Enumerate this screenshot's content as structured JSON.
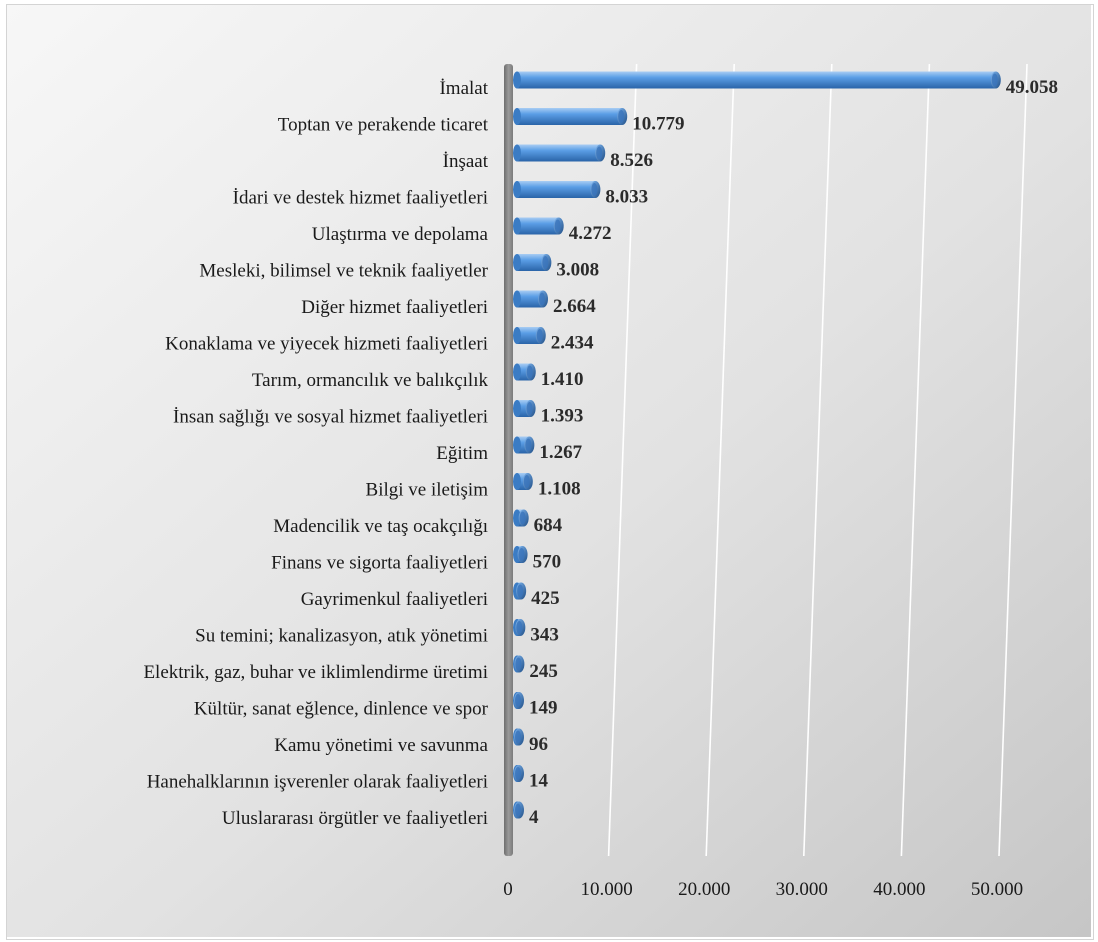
{
  "chart_data": {
    "type": "bar",
    "orientation": "horizontal",
    "categories": [
      "İmalat",
      "Toptan ve perakende ticaret",
      "İnşaat",
      "İdari ve destek hizmet faaliyetleri",
      "Ulaştırma ve depolama",
      "Mesleki, bilimsel ve teknik faaliyetler",
      "Diğer hizmet faaliyetleri",
      "Konaklama ve yiyecek hizmeti faaliyetleri",
      "Tarım, ormancılık ve balıkçılık",
      "İnsan sağlığı ve sosyal hizmet faaliyetleri",
      "Eğitim",
      "Bilgi ve iletişim",
      "Madencilik ve taş ocakçılığı",
      "Finans ve sigorta faaliyetleri",
      "Gayrimenkul faaliyetleri",
      "Su temini; kanalizasyon, atık yönetimi",
      "Elektrik, gaz, buhar ve iklimlendirme üretimi",
      "Kültür, sanat eğlence, dinlence ve spor",
      "Kamu yönetimi ve savunma",
      "Hanehalklarının işverenler olarak faaliyetleri",
      "Uluslararası örgütler ve  faaliyetleri"
    ],
    "values": [
      49058,
      10779,
      8526,
      8033,
      4272,
      3008,
      2664,
      2434,
      1410,
      1393,
      1267,
      1108,
      684,
      570,
      425,
      343,
      245,
      149,
      96,
      14,
      4
    ],
    "value_labels": [
      "49.058",
      "10.779",
      "8.526",
      "8.033",
      "4.272",
      "3.008",
      "2.664",
      "2.434",
      "1.410",
      "1.393",
      "1.267",
      "1.108",
      "684",
      "570",
      "425",
      "343",
      "245",
      "149",
      "96",
      "14",
      "4"
    ],
    "xlim": [
      0,
      50000
    ],
    "x_ticks": [
      0,
      10000,
      20000,
      30000,
      40000,
      50000
    ],
    "x_tick_labels": [
      "0",
      "10.000",
      "20.000",
      "30.000",
      "40.000",
      "50.000"
    ],
    "grid": true,
    "style": "3d-cylinder",
    "bar_color": "#4a8fd6",
    "title": "",
    "xlabel": "",
    "ylabel": ""
  }
}
